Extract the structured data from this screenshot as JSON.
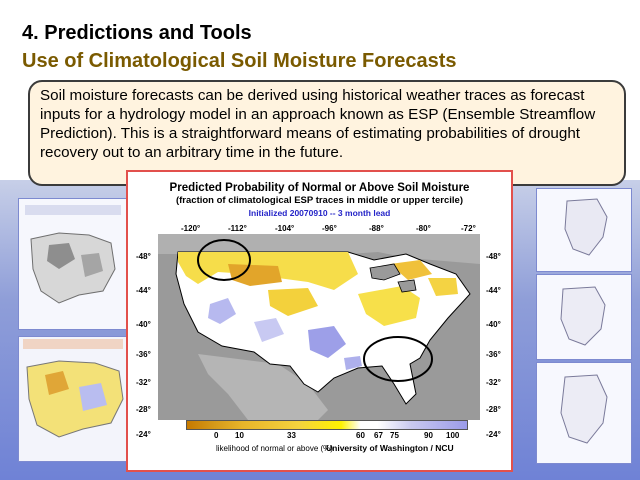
{
  "slide": {
    "title_line1": "4. Predictions and Tools",
    "title_line2": "Use of Climatological Soil Moisture Forecasts",
    "body_text": "Soil moisture forecasts can be derived using historical weather traces as forecast inputs for a hydrology model in an approach known as ESP (Ensemble Streamflow Prediction). This is a straightforward means of estimating probabilities of drought recovery out to an arbitrary time in the future."
  },
  "map": {
    "title": "Predicted Probability of  Normal or Above Soil Moisture",
    "subtitle": "(fraction of climatological ESP traces in middle or upper tercile)",
    "initialized": "Initialized 20070910 -- 3 month lead",
    "longitude_ticks": [
      "-120°",
      "-112°",
      "-104°",
      "-96°",
      "-88°",
      "-80°",
      "-72°"
    ],
    "latitude_ticks": [
      "-48°",
      "-44°",
      "-40°",
      "-36°",
      "-32°",
      "-28°",
      "-24°"
    ],
    "colorbar": {
      "labels": [
        "0",
        "10",
        "33",
        "60",
        "67",
        "75",
        "90",
        "100"
      ],
      "caption": "likelihood of normal or above (%)",
      "credit": "University of Washington / NCU"
    }
  }
}
